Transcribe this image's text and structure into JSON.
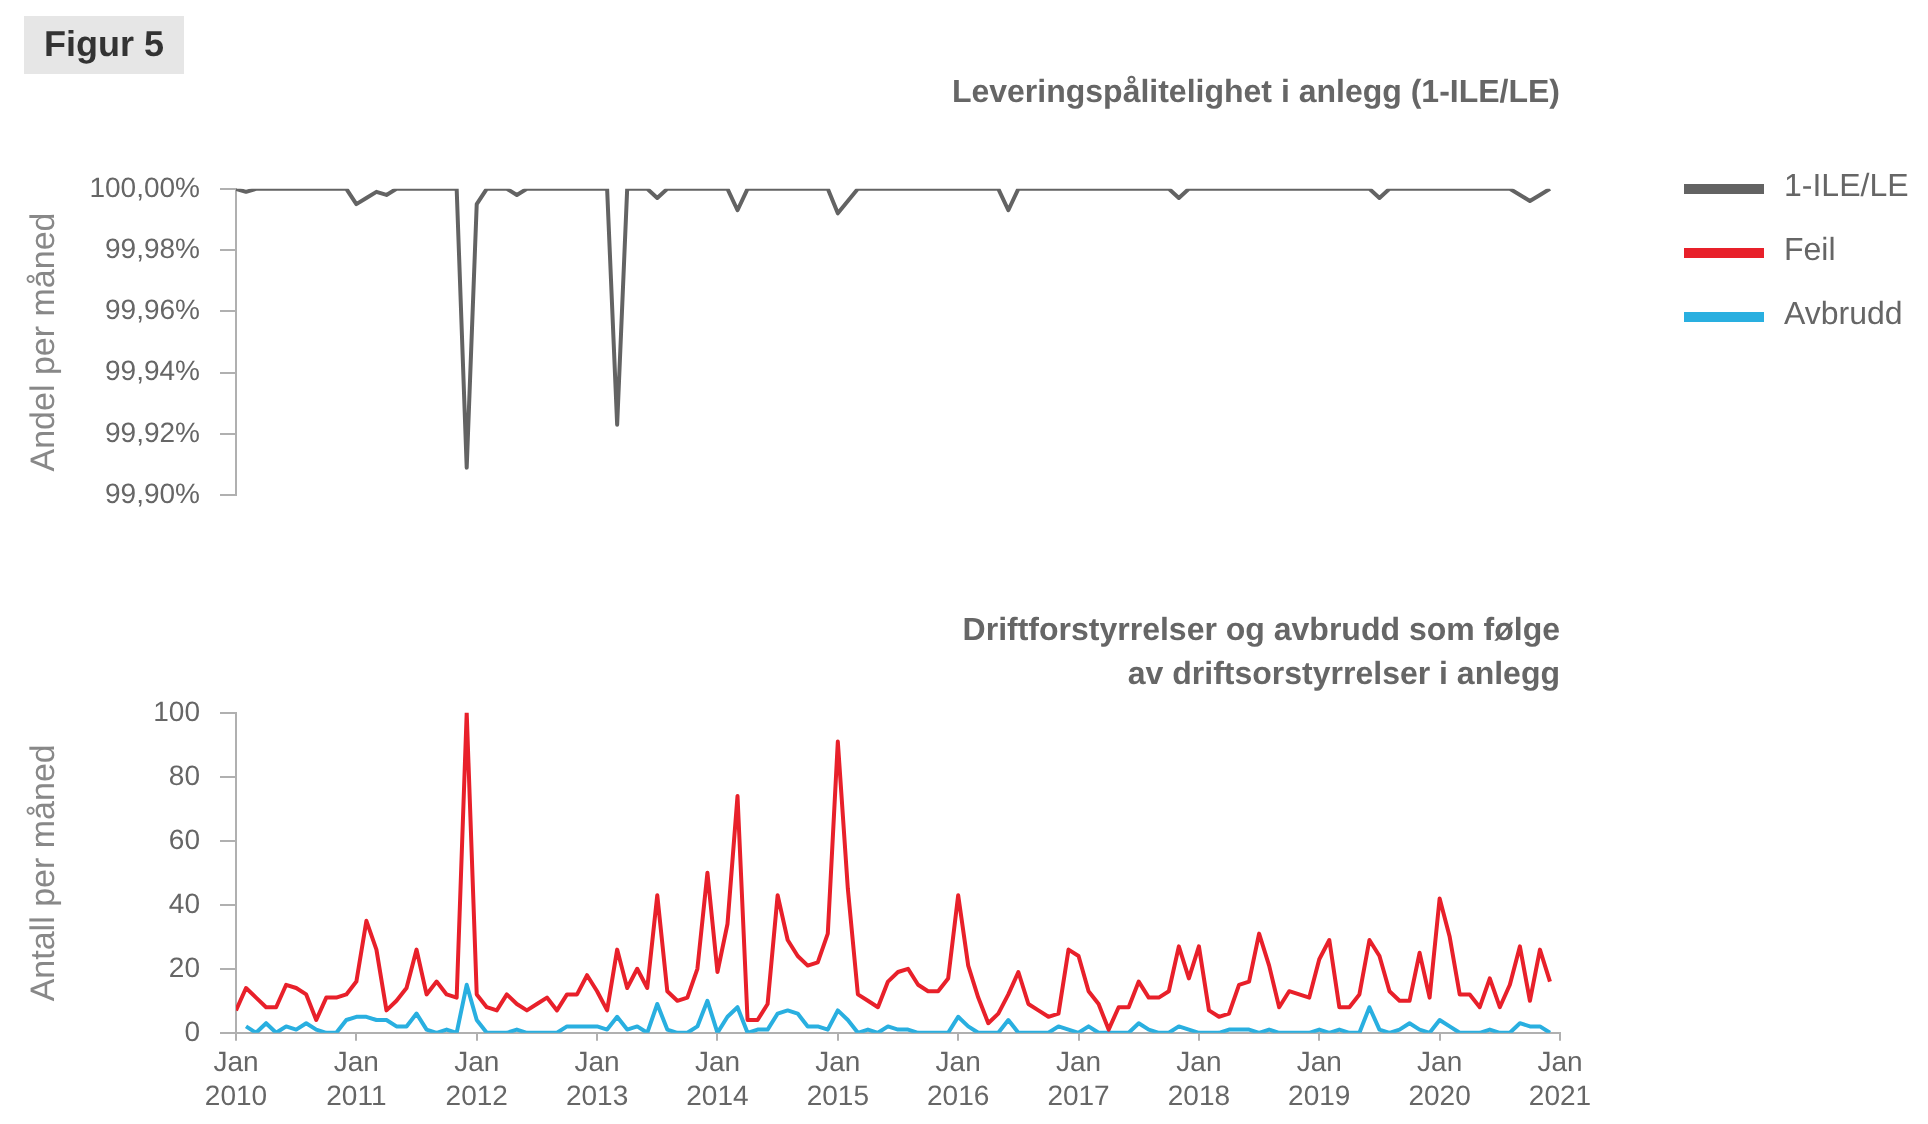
{
  "chart_data": [
    {
      "type": "line",
      "title": "Leveringspålitelighet i anlegg (1-ILE/LE)",
      "ylabel": "Andel per måned",
      "annotations": [
        "Figur 5"
      ],
      "legend": "right",
      "tick_labels": "y",
      "xlim": [
        "2010-01",
        "2021-01"
      ],
      "ylim": [
        99.9,
        100.0
      ],
      "yticks": [
        {
          "value": 99.9,
          "label": "99,90%"
        },
        {
          "value": 99.92,
          "label": "99,92%"
        },
        {
          "value": 99.94,
          "label": "99,94%"
        },
        {
          "value": 99.96,
          "label": "99,96%"
        },
        {
          "value": 99.98,
          "label": "99,98%"
        },
        {
          "value": 100.0,
          "label": "100,00%"
        }
      ],
      "series": [
        {
          "name": "1-ILE/LE",
          "color": "#636363",
          "x": [
            "2010-01",
            "2010-02",
            "2010-03",
            "2010-12",
            "2011-01",
            "2011-02",
            "2011-03",
            "2011-04",
            "2011-05",
            "2011-11",
            "2011-12",
            "2012-01",
            "2012-02",
            "2012-04",
            "2012-05",
            "2012-06",
            "2013-02",
            "2013-03",
            "2013-04",
            "2013-06",
            "2013-07",
            "2013-08",
            "2014-02",
            "2014-03",
            "2014-04",
            "2014-12",
            "2015-01",
            "2015-03",
            "2016-05",
            "2016-06",
            "2016-07",
            "2017-10",
            "2017-11",
            "2017-12",
            "2019-06",
            "2019-07",
            "2019-08",
            "2020-08",
            "2020-10",
            "2020-11",
            "2020-12"
          ],
          "values": [
            100.0,
            99.999,
            100.0,
            100.0,
            99.995,
            99.997,
            99.999,
            99.998,
            100.0,
            100.0,
            99.909,
            99.995,
            100.0,
            100.0,
            99.998,
            100.0,
            100.0,
            99.923,
            100.0,
            100.0,
            99.997,
            100.0,
            100.0,
            99.993,
            100.0,
            100.0,
            99.992,
            100.0,
            100.0,
            99.993,
            100.0,
            100.0,
            99.997,
            100.0,
            100.0,
            99.997,
            100.0,
            100.0,
            99.996,
            99.998,
            100.0
          ]
        }
      ]
    },
    {
      "type": "line",
      "title": "Driftforstyrrelser og avbrudd som følge\nav driftsorstyrrelser i anlegg",
      "ylabel": "Antall per måned",
      "legend": "right",
      "xlim": [
        "2010-01",
        "2021-01"
      ],
      "xticks": [
        {
          "value": "2010-01",
          "label": "Jan\n2010"
        },
        {
          "value": "2011-01",
          "label": "Jan\n2011"
        },
        {
          "value": "2012-01",
          "label": "Jan\n2012"
        },
        {
          "value": "2013-01",
          "label": "Jan\n2013"
        },
        {
          "value": "2014-01",
          "label": "Jan\n2014"
        },
        {
          "value": "2015-01",
          "label": "Jan\n2015"
        },
        {
          "value": "2016-01",
          "label": "Jan\n2016"
        },
        {
          "value": "2017-01",
          "label": "Jan\n2017"
        },
        {
          "value": "2018-01",
          "label": "Jan\n2018"
        },
        {
          "value": "2019-01",
          "label": "Jan\n2019"
        },
        {
          "value": "2020-01",
          "label": "Jan\n2020"
        },
        {
          "value": "2021-01",
          "label": "Jan\n2021"
        }
      ],
      "ylim": [
        0,
        100
      ],
      "yticks": [
        0,
        20,
        40,
        60,
        80,
        100
      ],
      "x": [
        "2010-01",
        "2010-02",
        "2010-03",
        "2010-04",
        "2010-05",
        "2010-06",
        "2010-07",
        "2010-08",
        "2010-09",
        "2010-10",
        "2010-11",
        "2010-12",
        "2011-01",
        "2011-02",
        "2011-03",
        "2011-04",
        "2011-05",
        "2011-06",
        "2011-07",
        "2011-08",
        "2011-09",
        "2011-10",
        "2011-11",
        "2011-12",
        "2012-01",
        "2012-02",
        "2012-03",
        "2012-04",
        "2012-05",
        "2012-06",
        "2012-07",
        "2012-08",
        "2012-09",
        "2012-10",
        "2012-11",
        "2012-12",
        "2013-01",
        "2013-02",
        "2013-03",
        "2013-04",
        "2013-05",
        "2013-06",
        "2013-07",
        "2013-08",
        "2013-09",
        "2013-10",
        "2013-11",
        "2013-12",
        "2014-01",
        "2014-02",
        "2014-03",
        "2014-04",
        "2014-05",
        "2014-06",
        "2014-07",
        "2014-08",
        "2014-09",
        "2014-10",
        "2014-11",
        "2014-12",
        "2015-01",
        "2015-02",
        "2015-03",
        "2015-04",
        "2015-05",
        "2015-06",
        "2015-07",
        "2015-08",
        "2015-09",
        "2015-10",
        "2015-11",
        "2015-12",
        "2016-01",
        "2016-02",
        "2016-03",
        "2016-04",
        "2016-05",
        "2016-06",
        "2016-07",
        "2016-08",
        "2016-09",
        "2016-10",
        "2016-11",
        "2016-12",
        "2017-01",
        "2017-02",
        "2017-03",
        "2017-04",
        "2017-05",
        "2017-06",
        "2017-07",
        "2017-08",
        "2017-09",
        "2017-10",
        "2017-11",
        "2017-12",
        "2018-01",
        "2018-02",
        "2018-03",
        "2018-04",
        "2018-05",
        "2018-06",
        "2018-07",
        "2018-08",
        "2018-09",
        "2018-10",
        "2018-11",
        "2018-12",
        "2019-01",
        "2019-02",
        "2019-03",
        "2019-04",
        "2019-05",
        "2019-06",
        "2019-07",
        "2019-08",
        "2019-09",
        "2019-10",
        "2019-11",
        "2019-12",
        "2020-01",
        "2020-02",
        "2020-03",
        "2020-04",
        "2020-05",
        "2020-06",
        "2020-07",
        "2020-08",
        "2020-09",
        "2020-10",
        "2020-11",
        "2020-12"
      ],
      "series": [
        {
          "name": "Feil",
          "color": "#e8202a",
          "values": [
            7,
            14,
            11,
            8,
            8,
            15,
            14,
            12,
            4,
            11,
            11,
            12,
            16,
            35,
            26,
            7,
            10,
            14,
            26,
            12,
            16,
            12,
            11,
            100,
            12,
            8,
            7,
            12,
            9,
            7,
            9,
            11,
            7,
            12,
            12,
            18,
            13,
            7,
            26,
            14,
            20,
            14,
            43,
            13,
            10,
            11,
            20,
            50,
            19,
            34,
            74,
            4,
            4,
            9,
            43,
            29,
            24,
            21,
            22,
            31,
            91,
            45,
            12,
            10,
            8,
            16,
            19,
            20,
            15,
            13,
            13,
            17,
            43,
            21,
            11,
            3,
            6,
            12,
            19,
            9,
            7,
            5,
            6,
            26,
            24,
            13,
            9,
            1,
            8,
            8,
            16,
            11,
            11,
            13,
            27,
            17,
            27,
            7,
            5,
            6,
            15,
            16,
            31,
            21,
            8,
            13,
            12,
            11,
            23,
            29,
            8,
            8,
            12,
            29,
            24,
            13,
            10,
            10,
            25,
            11,
            42,
            30,
            12,
            12,
            8,
            17,
            8,
            15,
            27,
            10,
            26,
            16
          ]
        },
        {
          "name": "Avbrudd",
          "color": "#29afe0",
          "values": [
            null,
            2,
            0,
            3,
            0,
            2,
            1,
            3,
            1,
            0,
            0,
            4,
            5,
            5,
            4,
            4,
            2,
            2,
            6,
            1,
            0,
            1,
            0,
            15,
            4,
            0,
            0,
            0,
            1,
            0,
            0,
            0,
            0,
            2,
            2,
            2,
            2,
            1,
            5,
            1,
            2,
            0,
            9,
            1,
            0,
            0,
            2,
            10,
            0,
            5,
            8,
            0,
            1,
            1,
            6,
            7,
            6,
            2,
            2,
            1,
            7,
            4,
            0,
            1,
            0,
            2,
            1,
            1,
            0,
            0,
            0,
            0,
            5,
            2,
            0,
            0,
            0,
            4,
            0,
            0,
            0,
            0,
            2,
            1,
            0,
            2,
            0,
            0,
            0,
            0,
            3,
            1,
            0,
            0,
            2,
            1,
            0,
            0,
            0,
            1,
            1,
            1,
            0,
            1,
            0,
            0,
            0,
            0,
            1,
            0,
            1,
            0,
            0,
            8,
            1,
            0,
            1,
            3,
            1,
            0,
            4,
            2,
            0,
            0,
            0,
            1,
            0,
            0,
            3,
            2,
            2,
            0
          ]
        }
      ]
    }
  ]
}
